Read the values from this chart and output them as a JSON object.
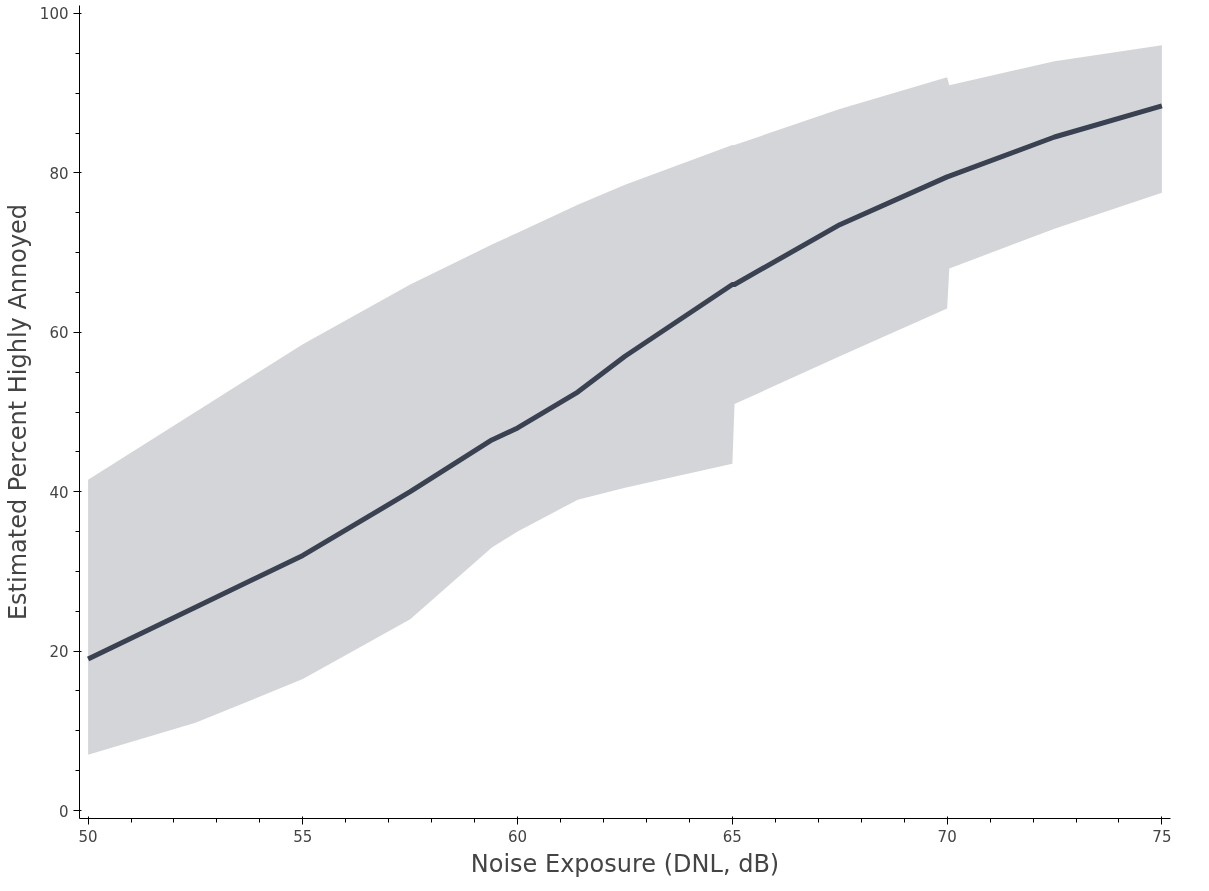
{
  "chart_data": {
    "type": "line",
    "xlabel": "Noise Exposure (DNL, dB)",
    "ylabel": "Estimated Percent Highly Annoyed",
    "x": [
      50,
      52.5,
      55,
      57.5,
      59.4,
      60,
      61.4,
      62.5,
      65,
      65.05,
      67.5,
      70,
      70.05,
      72.5,
      75
    ],
    "series": [
      {
        "color": "#3a4150",
        "values": [
          19,
          25.5,
          32,
          40,
          46.5,
          48,
          52.5,
          57,
          66,
          66,
          73.5,
          79.5,
          79.6,
          84.5,
          88.4
        ],
        "lower": [
          7,
          11,
          16.5,
          24,
          33,
          35,
          39,
          40.5,
          43.5,
          51,
          57,
          63,
          68,
          73,
          77.5
        ],
        "upper": [
          41.5,
          50,
          58.5,
          66,
          71,
          72.5,
          76,
          78.5,
          83.5,
          83.5,
          88,
          92,
          91,
          94,
          96
        ]
      }
    ],
    "xlim": [
      49.8,
      75.2
    ],
    "ylim": [
      -1,
      101
    ],
    "xticks": [
      50,
      55,
      60,
      65,
      70,
      75
    ],
    "yticks": [
      0,
      20,
      40,
      60,
      80,
      100
    ],
    "grid": false,
    "marker": "none",
    "line_style": "solid"
  }
}
